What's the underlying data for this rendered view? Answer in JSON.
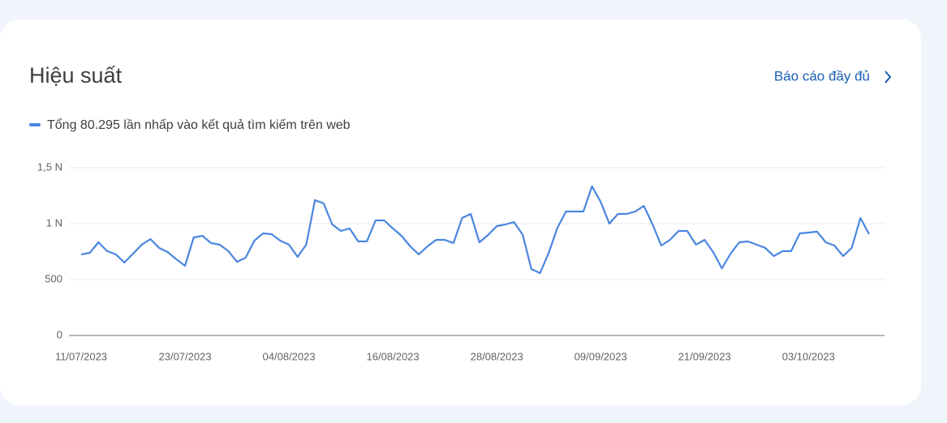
{
  "card": {
    "title": "Hiệu suất",
    "link": "Báo cáo đầy đủ"
  },
  "chart_data": {
    "type": "line",
    "x": [
      "11/07/2023",
      "12/07/2023",
      "13/07/2023",
      "14/07/2023",
      "15/07/2023",
      "16/07/2023",
      "17/07/2023",
      "18/07/2023",
      "19/07/2023",
      "20/07/2023",
      "21/07/2023",
      "22/07/2023",
      "23/07/2023",
      "24/07/2023",
      "25/07/2023",
      "26/07/2023",
      "27/07/2023",
      "28/07/2023",
      "29/07/2023",
      "30/07/2023",
      "31/07/2023",
      "01/08/2023",
      "02/08/2023",
      "03/08/2023",
      "04/08/2023",
      "05/08/2023",
      "06/08/2023",
      "07/08/2023",
      "08/08/2023",
      "09/08/2023",
      "10/08/2023",
      "11/08/2023",
      "12/08/2023",
      "13/08/2023",
      "14/08/2023",
      "15/08/2023",
      "16/08/2023",
      "17/08/2023",
      "18/08/2023",
      "19/08/2023",
      "20/08/2023",
      "21/08/2023",
      "22/08/2023",
      "23/08/2023",
      "24/08/2023",
      "25/08/2023",
      "26/08/2023",
      "27/08/2023",
      "28/08/2023",
      "29/08/2023",
      "30/08/2023",
      "31/08/2023",
      "01/09/2023",
      "02/09/2023",
      "03/09/2023",
      "04/09/2023",
      "05/09/2023",
      "06/09/2023",
      "07/09/2023",
      "08/09/2023",
      "09/09/2023",
      "10/09/2023",
      "11/09/2023",
      "12/09/2023",
      "13/09/2023",
      "14/09/2023",
      "15/09/2023",
      "16/09/2023",
      "17/09/2023",
      "18/09/2023",
      "19/09/2023",
      "20/09/2023",
      "21/09/2023",
      "22/09/2023",
      "23/09/2023",
      "24/09/2023",
      "25/09/2023",
      "26/09/2023",
      "27/09/2023",
      "28/09/2023",
      "29/09/2023",
      "30/09/2023",
      "01/10/2023",
      "02/10/2023",
      "03/10/2023",
      "04/10/2023",
      "05/10/2023",
      "06/10/2023",
      "07/10/2023",
      "08/10/2023",
      "09/10/2023",
      "10/10/2023"
    ],
    "series": [
      {
        "name": "Tổng 80.295 lần nhấp vào kết quả tìm kiếm trên web",
        "color": "#4a86e0",
        "values": [
          725,
          739,
          833,
          754,
          725,
          652,
          732,
          812,
          862,
          783,
          746,
          681,
          623,
          877,
          891,
          826,
          812,
          754,
          659,
          696,
          848,
          913,
          906,
          848,
          812,
          703,
          812,
          1210,
          1181,
          993,
          935,
          957,
          841,
          841,
          1029,
          1029,
          957,
          891,
          797,
          725,
          797,
          855,
          855,
          826,
          1051,
          1087,
          833,
          899,
          978,
          993,
          1014,
          899,
          594,
          558,
          739,
          964,
          1109,
          1109,
          1109,
          1333,
          1196,
          1000,
          1087,
          1087,
          1109,
          1159,
          993,
          804,
          855,
          935,
          935,
          812,
          855,
          746,
          601,
          732,
          833,
          841,
          812,
          783,
          710,
          754,
          754,
          913,
          920,
          928,
          833,
          804,
          710,
          783,
          1051,
          906
        ]
      }
    ],
    "xticks": [
      "11/07/2023",
      "23/07/2023",
      "04/08/2023",
      "16/08/2023",
      "28/08/2023",
      "09/09/2023",
      "21/09/2023",
      "03/10/2023"
    ],
    "ylim": [
      0,
      1500
    ],
    "yticks": [
      0,
      500,
      {
        "value": 1000,
        "label": "1 N"
      },
      {
        "value": 1500,
        "label": "1,5 N"
      }
    ],
    "grid": true
  }
}
